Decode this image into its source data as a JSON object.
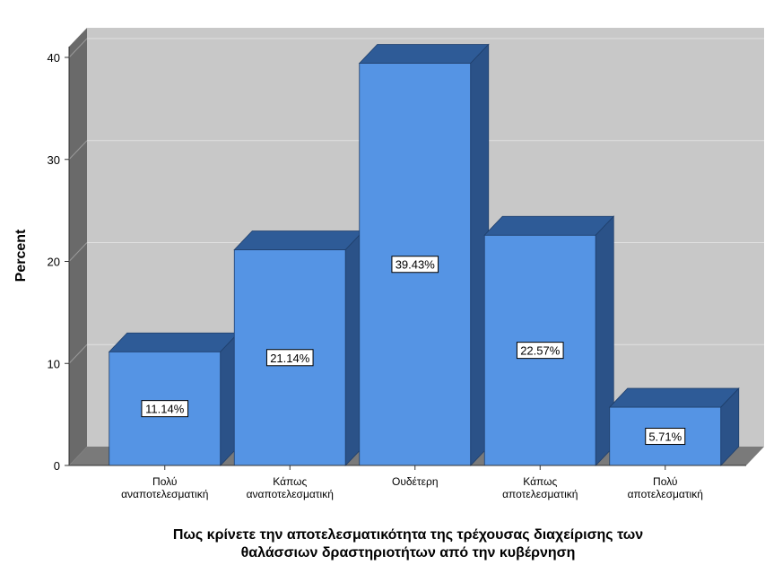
{
  "chart_data": {
    "type": "bar",
    "style": "3d",
    "categories": [
      [
        "Πολύ",
        "αναποτελεσματική"
      ],
      [
        "Κάπως",
        "αναποτελεσματική"
      ],
      [
        "Ουδέτερη"
      ],
      [
        "Κάπως",
        "αποτελεσματική"
      ],
      [
        "Πολύ",
        "αποτελεσματική"
      ]
    ],
    "values": [
      11.14,
      21.14,
      39.43,
      22.57,
      5.71
    ],
    "data_labels": [
      "11.14%",
      "21.14%",
      "39.43%",
      "22.57%",
      "5.71%"
    ],
    "ylabel": "Percent",
    "xlabel": [
      "Πως κρίνετε την αποτελεσματικότητα της τρέχουσας διαχείρισης των",
      "θαλάσσιων δραστηριοτήτων από την κυβέρνηση"
    ],
    "ylim": [
      0,
      40
    ],
    "yticks": [
      0,
      10,
      20,
      30,
      40
    ],
    "grid": true,
    "colors": {
      "bar_front": "#5594E4",
      "bar_top": "#2E5B97",
      "bar_side": "#2B5288",
      "plot_back": "#C8C8C8",
      "plot_side": "#6A6A6A",
      "plot_floor": "#7A7A7A",
      "gridline": "#E0E0E0"
    }
  }
}
